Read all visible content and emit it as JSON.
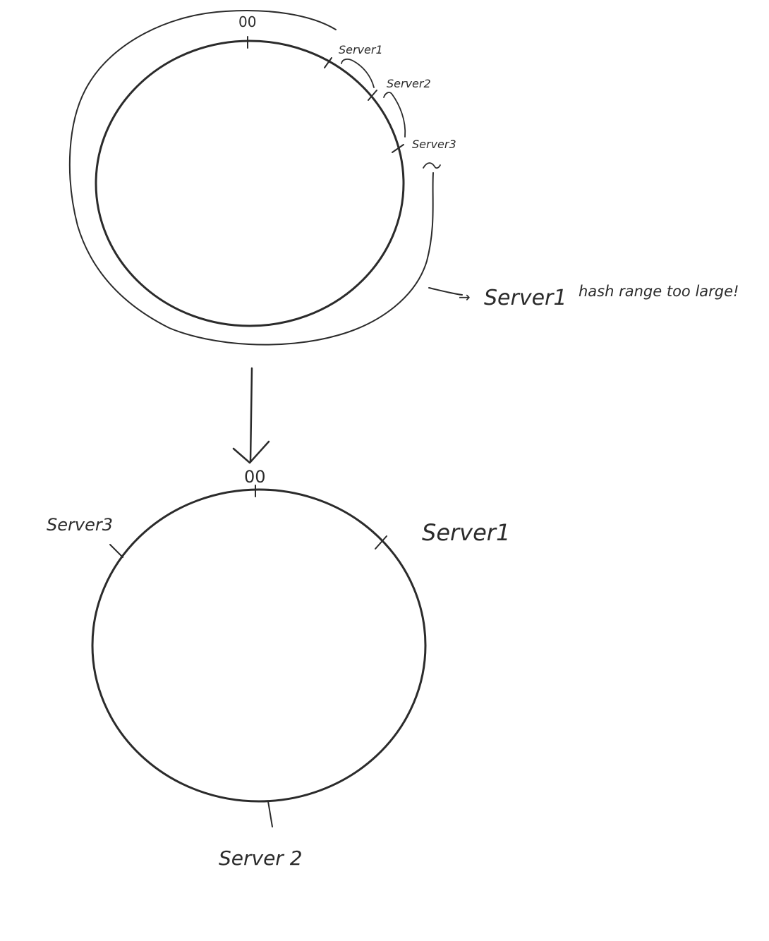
{
  "diagram": {
    "colors": {
      "ink": "#2b2b2b",
      "background": "#ffffff"
    },
    "top_ring": {
      "origin_label": "00",
      "server_labels": [
        "Server1",
        "Server2",
        "Server3"
      ],
      "note_arrow": "→",
      "note_server": "Server1",
      "note_text": "hash range too large!"
    },
    "transition_arrow": "down-arrow",
    "bottom_ring": {
      "origin_label": "00",
      "server1_label": "Server1",
      "server2_label": "Server 2",
      "server3_label": "Server3"
    }
  }
}
